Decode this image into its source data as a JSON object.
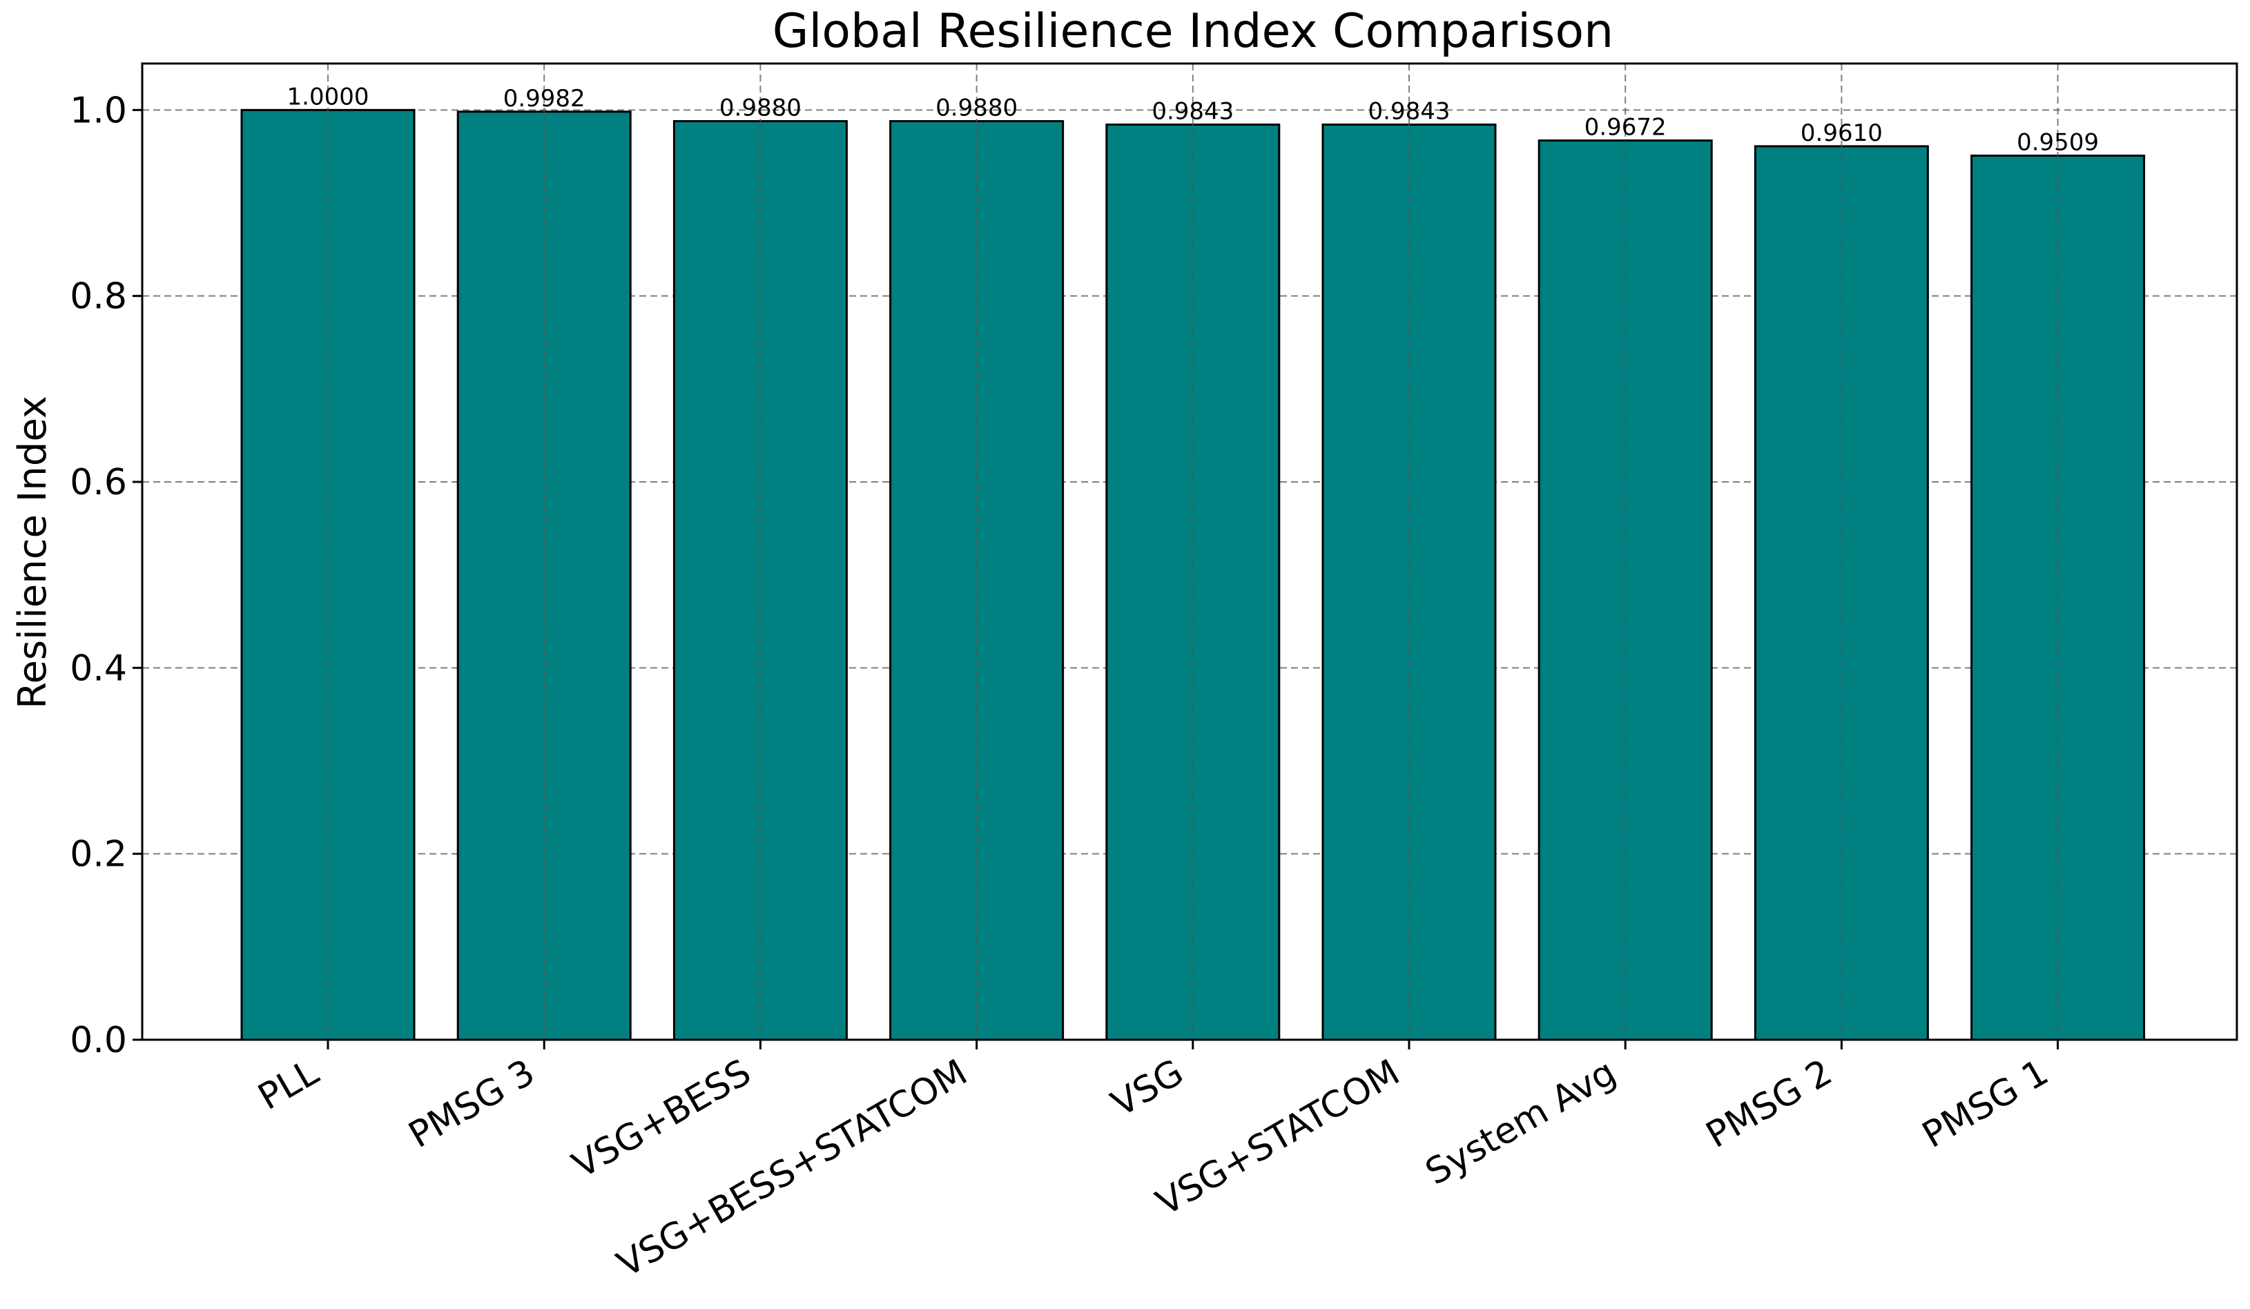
{
  "chart_data": {
    "type": "bar",
    "title": "Global Resilience Index Comparison",
    "xlabel": "",
    "ylabel": "Resilience Index",
    "categories": [
      "PLL",
      "PMSG 3",
      "VSG+BESS",
      "VSG+BESS+STATCOM",
      "VSG",
      "VSG+STATCOM",
      "System Avg",
      "PMSG 2",
      "PMSG 1"
    ],
    "values": [
      1.0,
      0.9982,
      0.988,
      0.988,
      0.9843,
      0.9843,
      0.9672,
      0.961,
      0.9509
    ],
    "value_labels": [
      "1.0000",
      "0.9982",
      "0.9880",
      "0.9880",
      "0.9843",
      "0.9843",
      "0.9672",
      "0.9610",
      "0.9509"
    ],
    "ylim": [
      0,
      1.05
    ],
    "yticks": [
      0.0,
      0.2,
      0.4,
      0.6,
      0.8,
      1.0
    ],
    "ytick_labels": [
      "0.0",
      "0.2",
      "0.4",
      "0.6",
      "0.8",
      "1.0"
    ],
    "grid": true,
    "bar_color": "#008080",
    "bar_edge_color": "#000000"
  }
}
